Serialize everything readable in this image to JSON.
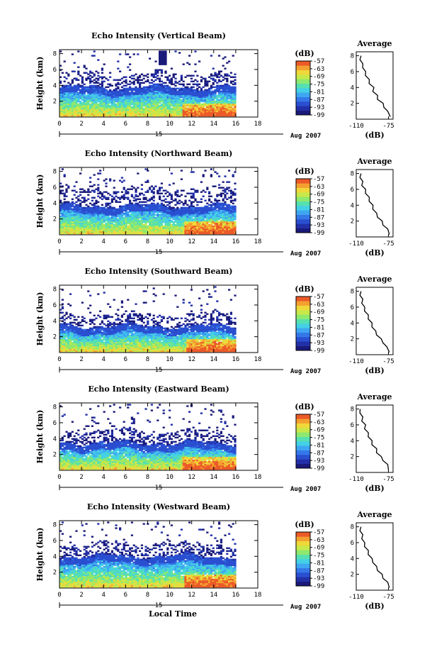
{
  "palette": [
    "#1a1a7a",
    "#2230a8",
    "#2a4fd0",
    "#3478e8",
    "#3fa6f2",
    "#44d0e6",
    "#56e0b0",
    "#8ee86e",
    "#c8e84a",
    "#f0d83a",
    "#f4a030",
    "#ec5a28"
  ],
  "chart_data": [
    {
      "type": "heatmap",
      "title": "Echo Intensity (Vertical Beam)",
      "ylabel": "Height (km)",
      "xlabel": "",
      "x_ticks": [
        "0",
        "2",
        "4",
        "6",
        "8",
        "10",
        "12",
        "14",
        "16",
        "18"
      ],
      "y_ticks": [
        "2",
        "4",
        "6",
        "8"
      ],
      "xlim": [
        0,
        18
      ],
      "ylim": [
        0,
        8.5
      ],
      "date_day": "15",
      "date_label": "Aug 2007",
      "colorbar_title": "(dB)",
      "colorbar_ticks": [
        "-57",
        "-63",
        "-69",
        "-75",
        "-81",
        "-87",
        "-93",
        "-99"
      ],
      "colorbar_range": [
        -99,
        -57
      ],
      "data_until": 16,
      "layers": {
        "top_dense": 3.7,
        "top_light": 5.5,
        "hot_start": 11.0,
        "gap_x": 9.3
      },
      "average": {
        "title": "Average",
        "xlabel": "(dB)",
        "x_ticks": [
          "-110",
          "-75"
        ],
        "y_ticks": [
          "2",
          "4",
          "6",
          "8"
        ],
        "xlim": [
          -110,
          -70
        ],
        "ylim": [
          0,
          8.5
        ],
        "height": [
          0.3,
          1.0,
          1.5,
          2.0,
          2.5,
          3.0,
          3.5,
          4.0,
          4.5,
          5.0,
          5.5,
          6.0,
          6.5,
          7.0,
          7.5,
          8.0
        ],
        "db": [
          -73,
          -77,
          -79,
          -82,
          -86,
          -88,
          -91,
          -92,
          -95,
          -97,
          -99,
          -101,
          -102,
          -104,
          -105,
          -106
        ]
      }
    },
    {
      "type": "heatmap",
      "title": "Echo Intensity (Northward Beam)",
      "ylabel": "Height (km)",
      "xlabel": "",
      "x_ticks": [
        "0",
        "2",
        "4",
        "6",
        "8",
        "10",
        "12",
        "14",
        "16",
        "18"
      ],
      "y_ticks": [
        "2",
        "4",
        "6",
        "8"
      ],
      "xlim": [
        0,
        18
      ],
      "ylim": [
        0,
        8.5
      ],
      "date_day": "15",
      "date_label": "Aug 2007",
      "colorbar_title": "(dB)",
      "colorbar_ticks": [
        "-57",
        "-63",
        "-69",
        "-75",
        "-81",
        "-87",
        "-93",
        "-99"
      ],
      "colorbar_range": [
        -99,
        -57
      ],
      "data_until": 16,
      "layers": {
        "top_dense": 3.6,
        "top_light": 5.8,
        "hot_start": 11.2,
        "gap_x": -1
      },
      "average": {
        "title": "Average",
        "xlabel": "(dB)",
        "x_ticks": [
          "-110",
          "-75"
        ],
        "y_ticks": [
          "2",
          "4",
          "6",
          "8"
        ],
        "xlim": [
          -110,
          -70
        ],
        "ylim": [
          0,
          8.5
        ],
        "height": [
          0.3,
          1.0,
          1.5,
          2.0,
          2.5,
          3.0,
          3.5,
          4.0,
          4.5,
          5.0,
          5.5,
          6.0,
          6.5,
          7.0,
          7.5,
          8.0
        ],
        "db": [
          -74,
          -77,
          -80,
          -83,
          -86,
          -89,
          -91,
          -93,
          -95,
          -97,
          -99,
          -101,
          -103,
          -104,
          -105,
          -106
        ]
      }
    },
    {
      "type": "heatmap",
      "title": "Echo Intensity (Southward Beam)",
      "ylabel": "Height (km)",
      "xlabel": "",
      "x_ticks": [
        "0",
        "2",
        "4",
        "6",
        "8",
        "10",
        "12",
        "14",
        "16",
        "18"
      ],
      "y_ticks": [
        "2",
        "4",
        "6",
        "8"
      ],
      "xlim": [
        0,
        18
      ],
      "ylim": [
        0,
        8.5
      ],
      "date_day": "15",
      "date_label": "Aug 2007",
      "colorbar_title": "(dB)",
      "colorbar_ticks": [
        "-57",
        "-63",
        "-69",
        "-75",
        "-81",
        "-87",
        "-93",
        "-99"
      ],
      "colorbar_range": [
        -99,
        -57
      ],
      "data_until": 16,
      "layers": {
        "top_dense": 3.3,
        "top_light": 4.8,
        "hot_start": 11.4,
        "gap_x": -1
      },
      "average": {
        "title": "Average",
        "xlabel": "(dB)",
        "x_ticks": [
          "-110",
          "-75"
        ],
        "y_ticks": [
          "2",
          "4",
          "6",
          "8"
        ],
        "xlim": [
          -110,
          -70
        ],
        "ylim": [
          0,
          8.5
        ],
        "height": [
          0.3,
          1.0,
          1.5,
          2.0,
          2.5,
          3.0,
          3.5,
          4.0,
          4.5,
          5.0,
          5.5,
          6.0,
          6.5,
          7.0,
          7.5,
          8.0
        ],
        "db": [
          -74,
          -78,
          -80,
          -84,
          -87,
          -90,
          -92,
          -94,
          -96,
          -98,
          -100,
          -102,
          -103,
          -104,
          -105,
          -106
        ]
      }
    },
    {
      "type": "heatmap",
      "title": "Echo Intensity (Eastward Beam)",
      "ylabel": "Height (km)",
      "xlabel": "",
      "x_ticks": [
        "0",
        "2",
        "4",
        "6",
        "8",
        "10",
        "12",
        "14",
        "16",
        "18"
      ],
      "y_ticks": [
        "2",
        "4",
        "6",
        "8"
      ],
      "xlim": [
        0,
        18
      ],
      "ylim": [
        0,
        8.5
      ],
      "date_day": "15",
      "date_label": "Aug 2007",
      "colorbar_title": "(dB)",
      "colorbar_ticks": [
        "-57",
        "-63",
        "-69",
        "-75",
        "-81",
        "-87",
        "-93",
        "-99"
      ],
      "colorbar_range": [
        -99,
        -57
      ],
      "data_until": 16,
      "layers": {
        "top_dense": 3.4,
        "top_light": 5.0,
        "hot_start": 11.0,
        "gap_x": -1
      },
      "average": {
        "title": "Average",
        "xlabel": "(dB)",
        "x_ticks": [
          "-110",
          "-75"
        ],
        "y_ticks": [
          "2",
          "4",
          "6",
          "8"
        ],
        "xlim": [
          -110,
          -70
        ],
        "ylim": [
          0,
          8.5
        ],
        "height": [
          0.3,
          1.0,
          1.5,
          2.0,
          2.5,
          3.0,
          3.5,
          4.0,
          4.5,
          5.0,
          5.5,
          6.0,
          6.5,
          7.0,
          7.5,
          8.0
        ],
        "db": [
          -75,
          -77,
          -80,
          -84,
          -87,
          -89,
          -92,
          -94,
          -96,
          -98,
          -100,
          -101,
          -103,
          -104,
          -105,
          -107
        ]
      }
    },
    {
      "type": "heatmap",
      "title": "Echo Intensity (Westward Beam)",
      "ylabel": "Height (km)",
      "xlabel": "Local Time",
      "x_ticks": [
        "0",
        "2",
        "4",
        "6",
        "8",
        "10",
        "12",
        "14",
        "16",
        "18"
      ],
      "y_ticks": [
        "2",
        "4",
        "6",
        "8"
      ],
      "xlim": [
        0,
        18
      ],
      "ylim": [
        0,
        8.5
      ],
      "date_day": "15",
      "date_label": "Aug 2007",
      "colorbar_title": "(dB)",
      "colorbar_ticks": [
        "-57",
        "-63",
        "-69",
        "-75",
        "-81",
        "-87",
        "-93",
        "-99"
      ],
      "colorbar_range": [
        -99,
        -57
      ],
      "data_until": 16,
      "layers": {
        "top_dense": 4.0,
        "top_light": 5.6,
        "hot_start": 11.3,
        "gap_x": -1
      },
      "average": {
        "title": "Average",
        "xlabel": "(dB)",
        "x_ticks": [
          "-110",
          "-75"
        ],
        "y_ticks": [
          "2",
          "4",
          "6",
          "8"
        ],
        "xlim": [
          -110,
          -70
        ],
        "ylim": [
          0,
          8.5
        ],
        "height": [
          0.3,
          1.0,
          1.5,
          2.0,
          2.5,
          3.0,
          3.5,
          4.0,
          4.5,
          5.0,
          5.5,
          6.0,
          6.5,
          7.0,
          7.5,
          8.0
        ],
        "db": [
          -74,
          -77,
          -80,
          -83,
          -86,
          -89,
          -91,
          -94,
          -96,
          -98,
          -100,
          -102,
          -103,
          -104,
          -105,
          -106
        ]
      }
    }
  ]
}
